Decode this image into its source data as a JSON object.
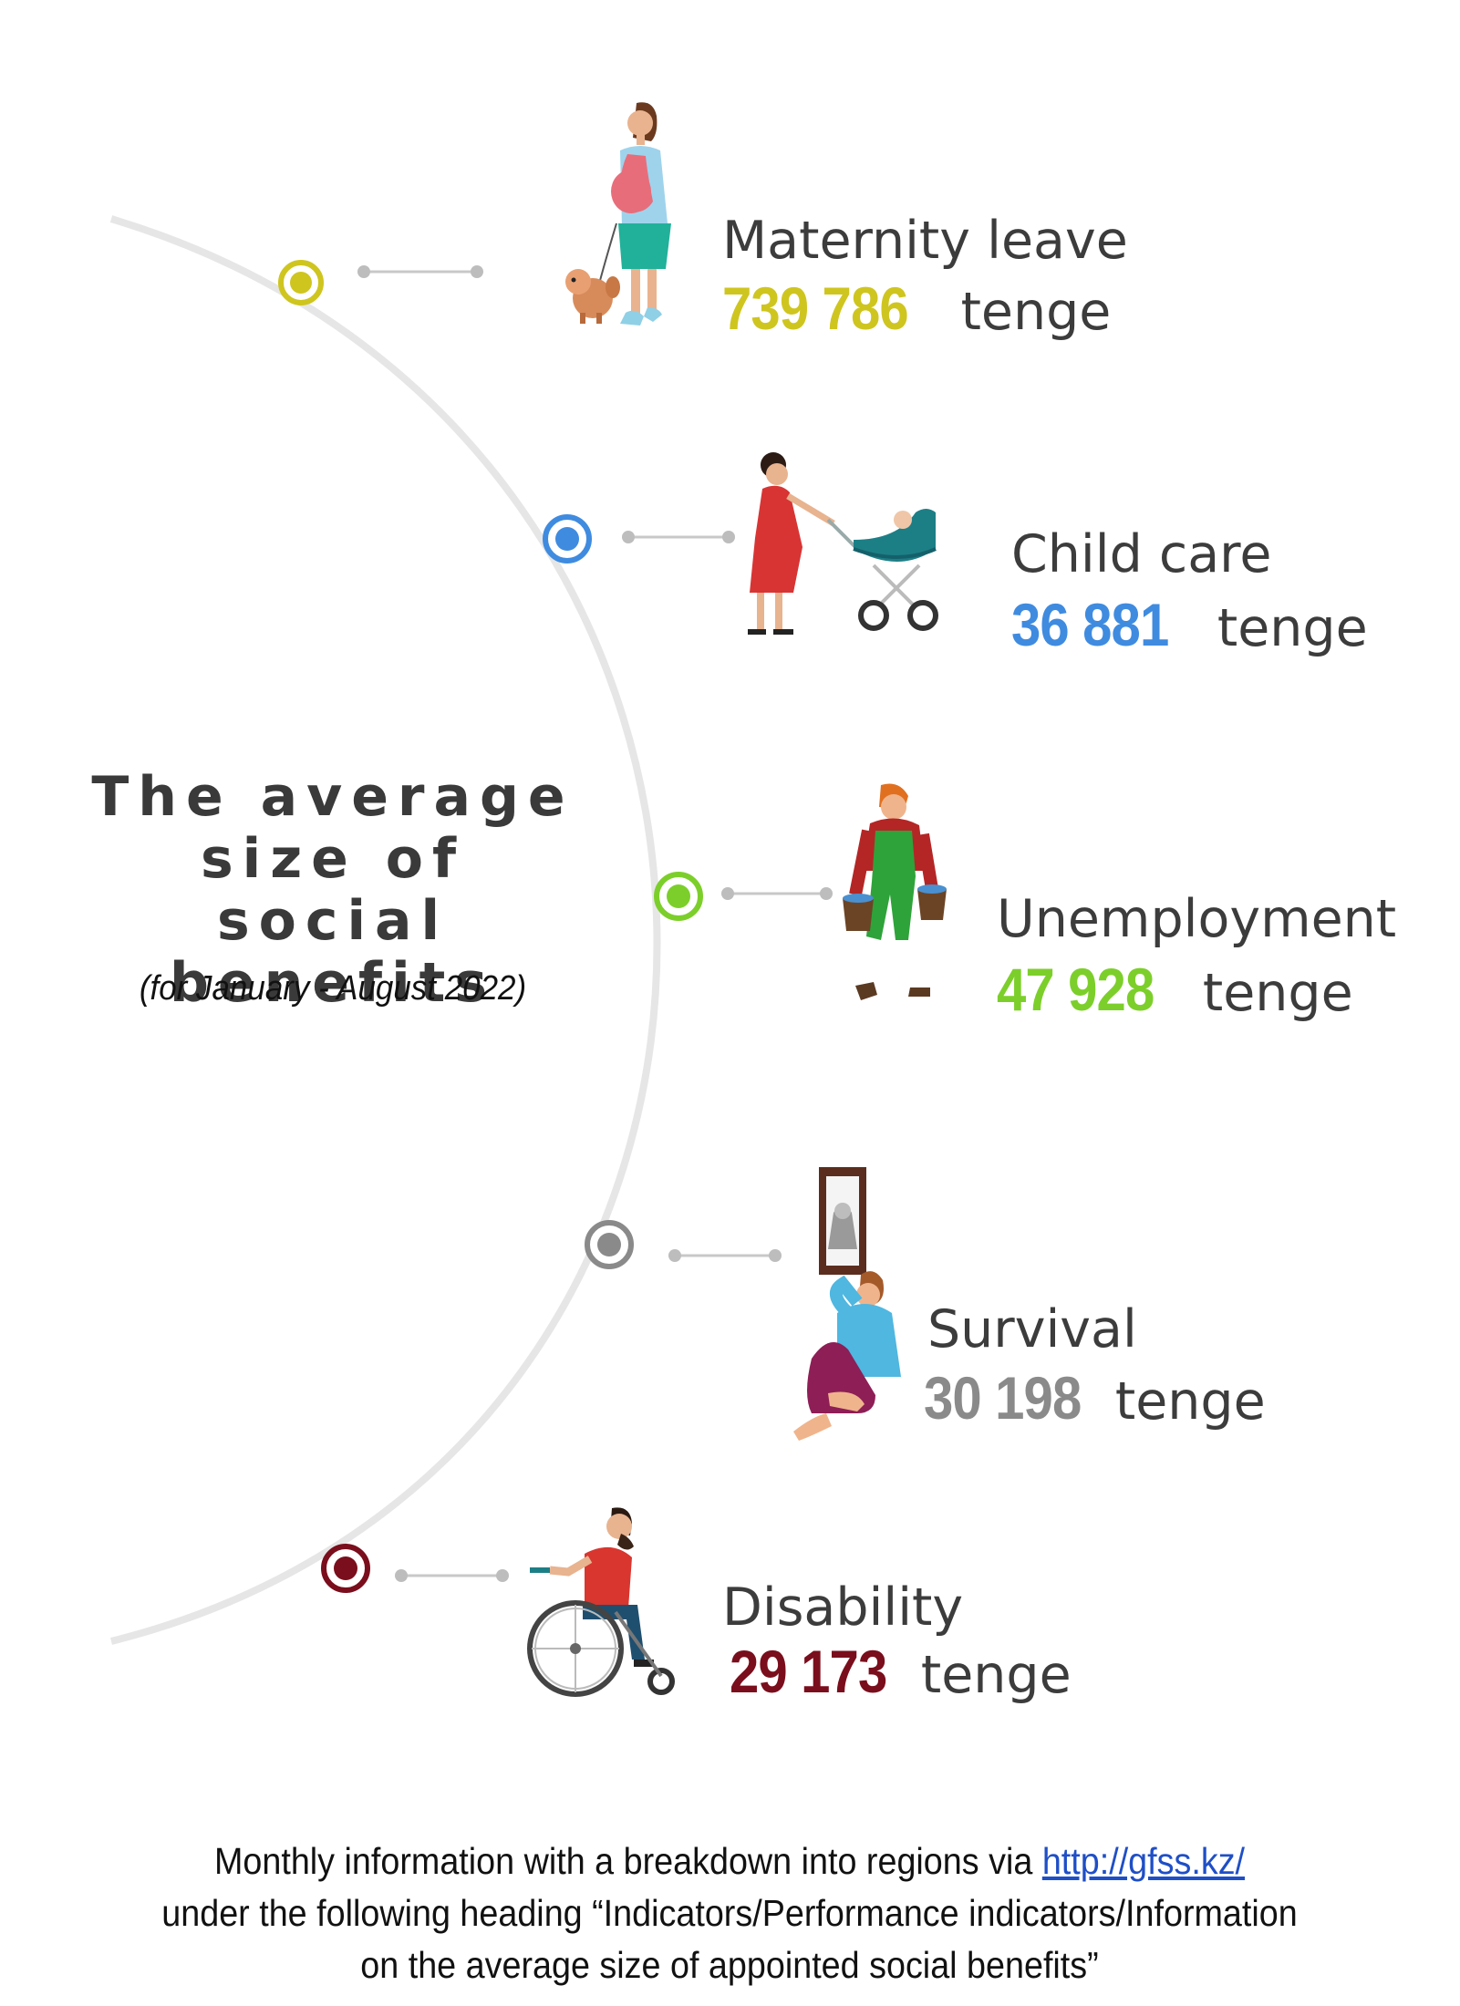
{
  "title": {
    "line1": "The average",
    "line2": "size of social",
    "line3": "benefits",
    "period": "(for January - August 2022)"
  },
  "colors": {
    "maternity": "#cfc51f",
    "childcare": "#3f8be0",
    "unemployment": "#7ccf2a",
    "survival": "#8a8a8a",
    "disability": "#7a0e1c"
  },
  "benefits": [
    {
      "label": "Maternity leave",
      "amount": "739 786",
      "unit": "tenge",
      "icon": "pregnant-woman-with-dog-icon"
    },
    {
      "label": "Child care",
      "amount": "36 881",
      "unit": "tenge",
      "icon": "woman-with-stroller-icon"
    },
    {
      "label": "Unemployment",
      "amount": "47 928",
      "unit": "tenge",
      "icon": "worker-with-buckets-icon"
    },
    {
      "label": "Survival",
      "amount": "30 198",
      "unit": "tenge",
      "icon": "grieving-man-with-portrait-icon"
    },
    {
      "label": "Disability",
      "amount": "29 173",
      "unit": "tenge",
      "icon": "man-in-wheelchair-icon"
    }
  ],
  "footer": {
    "line1_prefix": "Monthly information with a breakdown into regions via ",
    "link": "http://gfss.kz/",
    "line2": "under the following heading “Indicators/Performance indicators/Information",
    "line3": "on the average size of appointed social benefits”"
  }
}
